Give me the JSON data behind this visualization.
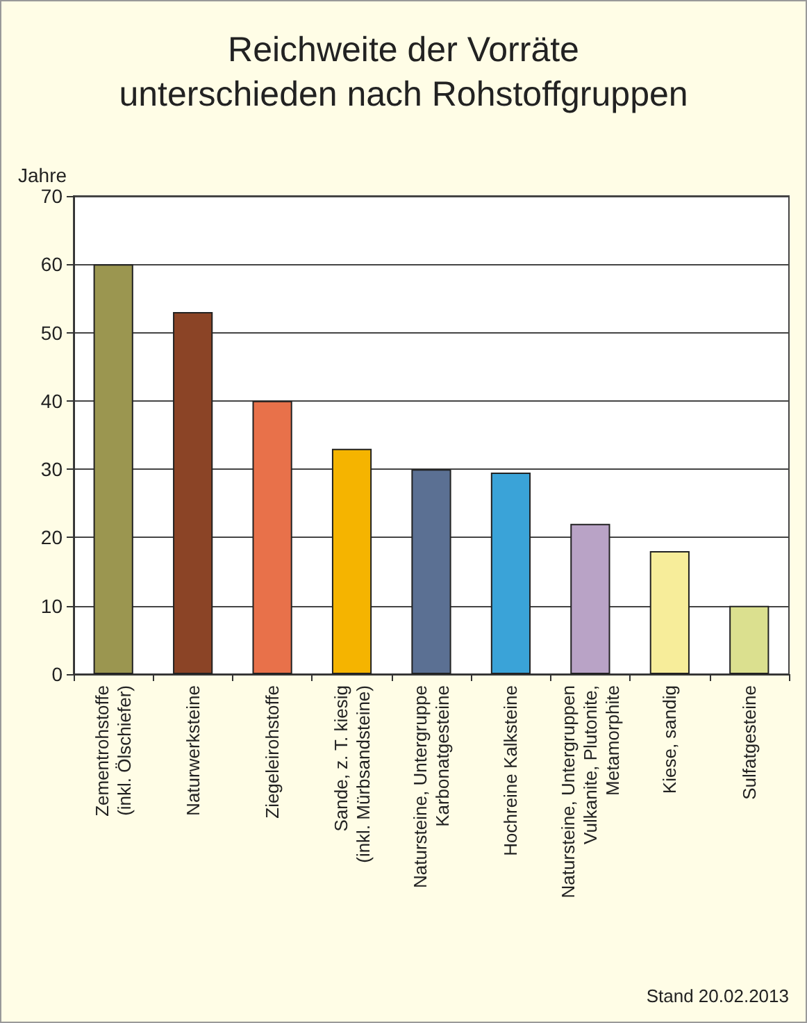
{
  "chart_data": {
    "type": "bar",
    "title": "Reichweite der Vorräte\nunterschieden nach Rohstoffgruppen",
    "ylabel": "Jahre",
    "categories": [
      "Zementrohstoffe\n(inkl. Ölschiefer)",
      "Naturwerksteine",
      "Ziegeleirohstoffe",
      "Sande, z. T. kiesig\n(inkl. Mürbsandsteine)",
      "Natursteine, Untergruppe\nKarbonatgesteine",
      "Hochreine Kalksteine",
      "Natursteine, Untergruppen\nVulkanite, Plutonite,\nMetamorphite",
      "Kiese, sandig",
      "Sulfatgesteine"
    ],
    "values": [
      60,
      53,
      40,
      33,
      30,
      29.5,
      22,
      18,
      10
    ],
    "colors": [
      "#9b9650",
      "#8b4426",
      "#e8714a",
      "#f5b400",
      "#5b7093",
      "#3aa3d8",
      "#b9a3c6",
      "#f7ed9a",
      "#dbe08f"
    ],
    "ylim": [
      0,
      70
    ],
    "yticks": [
      0,
      10,
      20,
      30,
      40,
      50,
      60,
      70
    ],
    "grid": "y",
    "annotations": [
      "Stand 20.02.2013"
    ]
  }
}
